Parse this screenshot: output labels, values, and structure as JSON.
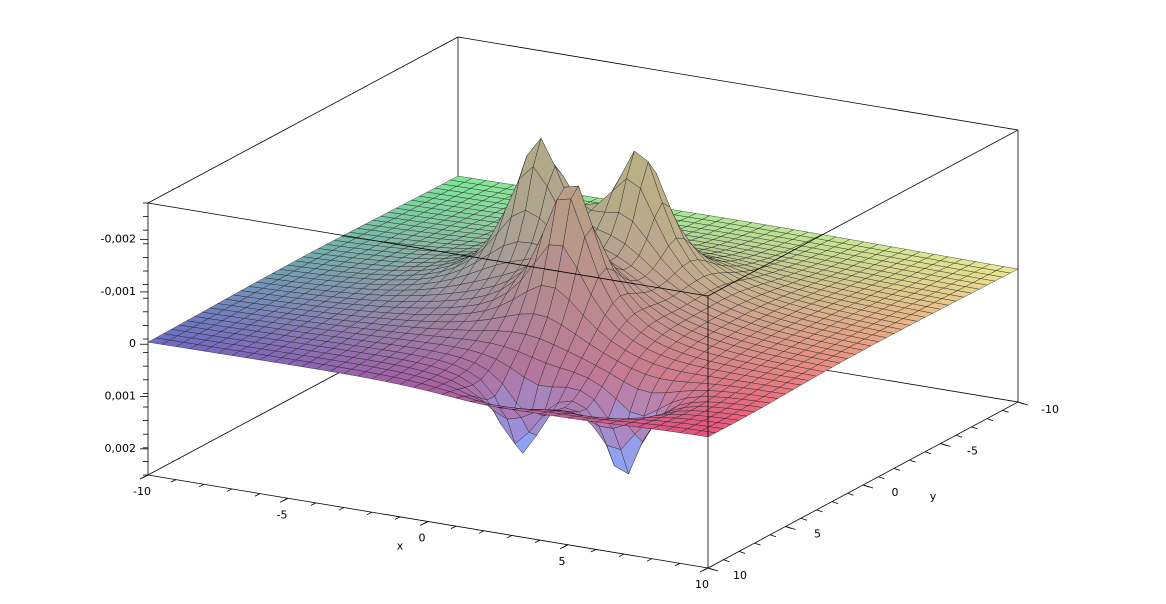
{
  "chart_data": {
    "type": "surface3d",
    "xlabel": "x",
    "ylabel": "y",
    "xlim": [
      -10,
      10
    ],
    "ylim": [
      -10,
      10
    ],
    "zlim": [
      0.0025,
      -0.0027
    ],
    "xticks": [
      -10,
      -5,
      0,
      5,
      10
    ],
    "yticks": [
      -10,
      -5,
      0,
      5,
      10
    ],
    "zticks": [
      {
        "value": -0.002,
        "label": "-0,002"
      },
      {
        "value": -0.001,
        "label": "-0,001"
      },
      {
        "value": 0,
        "label": "0"
      },
      {
        "value": 0.001,
        "label": "0,001"
      },
      {
        "value": 0.002,
        "label": "0,002"
      }
    ],
    "minor_ticks": true,
    "sources": [
      {
        "x": -1.6,
        "y": 0,
        "z": -0.0027,
        "w": 1.1
      },
      {
        "x": 1.3,
        "y": 3.2,
        "z": -0.0029,
        "w": 1.1
      },
      {
        "x": 1.2,
        "y": -1.6,
        "z": -0.0025,
        "w": 1.1
      },
      {
        "x": 2,
        "y": 7.6,
        "z": 0.0016,
        "w": 0.8
      },
      {
        "x": 5.3,
        "y": 6.9,
        "z": 0.0018,
        "w": 0.8
      }
    ],
    "corner_colors": [
      "#7de89a",
      "#6a6ac8",
      "#e8507a",
      "#eae890"
    ],
    "low_color": "#8fa2f2"
  }
}
